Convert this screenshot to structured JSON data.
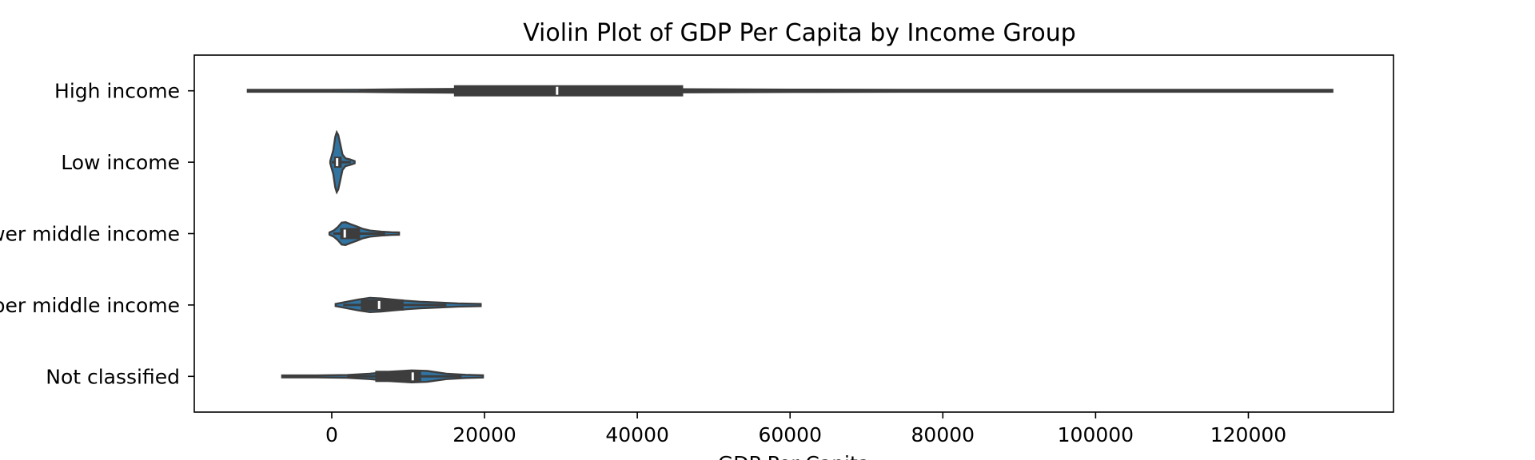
{
  "chart_data": {
    "type": "violin",
    "orientation": "horizontal",
    "title": "Violin Plot of GDP Per Capita by Income Group",
    "xlabel": "GDP Per Capita",
    "ylabel": "",
    "xlim": [
      -18000,
      139000
    ],
    "xticks": [
      0,
      20000,
      40000,
      60000,
      80000,
      100000,
      120000
    ],
    "xtick_labels": [
      "0",
      "20000",
      "40000",
      "60000",
      "80000",
      "100000",
      "120000"
    ],
    "grid": false,
    "colors": {
      "violin": "#3274a1",
      "box": "#3d3d3d",
      "median": "#ffffff",
      "frame": "#000000"
    },
    "categories": [
      "High income",
      "Low income",
      "Lower middle income",
      "Upper middle income",
      "Not classified"
    ],
    "violins": [
      {
        "name": "High income",
        "min": -11000,
        "max": 131000,
        "whisker_low": 3500,
        "whisker_high": 87500,
        "q1": 16000,
        "median": 29500,
        "q3": 46000,
        "profile": [
          [
            -11000,
            0.004
          ],
          [
            0,
            0.01
          ],
          [
            4000,
            0.02
          ],
          [
            10000,
            0.03
          ],
          [
            16000,
            0.035
          ],
          [
            25000,
            0.038
          ],
          [
            35000,
            0.036
          ],
          [
            46000,
            0.03
          ],
          [
            60000,
            0.022
          ],
          [
            75000,
            0.015
          ],
          [
            87500,
            0.01
          ],
          [
            100000,
            0.006
          ],
          [
            115000,
            0.004
          ],
          [
            131000,
            0.003
          ]
        ]
      },
      {
        "name": "Low income",
        "min": -200,
        "max": 3000,
        "whisker_low": 0,
        "whisker_high": 2500,
        "q1": 300,
        "median": 700,
        "q3": 1300,
        "profile": [
          [
            -200,
            0.02
          ],
          [
            200,
            0.22
          ],
          [
            450,
            0.46
          ],
          [
            650,
            0.55
          ],
          [
            850,
            0.5
          ],
          [
            1100,
            0.34
          ],
          [
            1400,
            0.14
          ],
          [
            1800,
            0.07
          ],
          [
            2400,
            0.05
          ],
          [
            3000,
            0.02
          ]
        ]
      },
      {
        "name": "Lower middle income",
        "min": -300,
        "max": 8800,
        "whisker_low": 200,
        "whisker_high": 7000,
        "q1": 1100,
        "median": 1700,
        "q3": 3700,
        "profile": [
          [
            -300,
            0.02
          ],
          [
            300,
            0.06
          ],
          [
            800,
            0.12
          ],
          [
            1300,
            0.2
          ],
          [
            1800,
            0.21
          ],
          [
            2500,
            0.17
          ],
          [
            3300,
            0.13
          ],
          [
            4000,
            0.09
          ],
          [
            5000,
            0.055
          ],
          [
            6500,
            0.035
          ],
          [
            7800,
            0.025
          ],
          [
            8800,
            0.02
          ]
        ]
      },
      {
        "name": "Upper middle income",
        "min": 500,
        "max": 19500,
        "whisker_low": 1500,
        "whisker_high": 15000,
        "q1": 3800,
        "median": 6200,
        "q3": 9400,
        "profile": [
          [
            500,
            0.02
          ],
          [
            2000,
            0.06
          ],
          [
            3500,
            0.1
          ],
          [
            5000,
            0.13
          ],
          [
            6500,
            0.12
          ],
          [
            8000,
            0.1
          ],
          [
            9500,
            0.08
          ],
          [
            11500,
            0.06
          ],
          [
            14000,
            0.045
          ],
          [
            16500,
            0.03
          ],
          [
            19500,
            0.02
          ]
        ]
      },
      {
        "name": "Not classified",
        "min": -6500,
        "max": 19800,
        "whisker_low": 2000,
        "whisker_high": 17000,
        "q1": 5700,
        "median": 10600,
        "q3": 11700,
        "profile": [
          [
            -6500,
            0.01
          ],
          [
            -2000,
            0.015
          ],
          [
            2000,
            0.025
          ],
          [
            5000,
            0.05
          ],
          [
            8000,
            0.09
          ],
          [
            10500,
            0.11
          ],
          [
            12500,
            0.1
          ],
          [
            15000,
            0.05
          ],
          [
            17500,
            0.03
          ],
          [
            19800,
            0.02
          ]
        ]
      }
    ]
  }
}
